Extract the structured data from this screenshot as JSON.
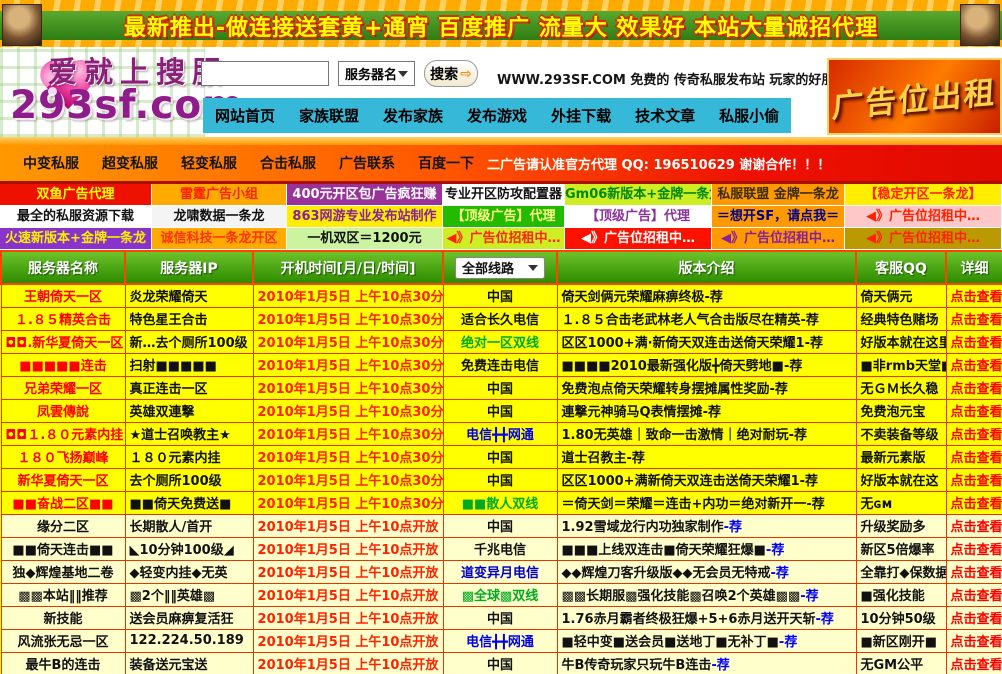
{
  "colors": {
    "accent_red": "#ff0000",
    "row_bright": "#ffff00",
    "row_pale": "#ffffcc",
    "header_green": "#3a9a0a",
    "nav_cyan": "#36b8d8",
    "filter_red": "#ee1100"
  },
  "banner": {
    "text": "最新推出-做连接送套黄+通宵 百度推广 流量大 效果好 本站大量诚招代理"
  },
  "header": {
    "logo_line1": "爱就上搜服",
    "logo_line2": "293sf.com",
    "search": {
      "value": "",
      "category": "服务器名",
      "button": "搜索",
      "arrow": "⇨"
    },
    "tagline": "WWW.293SF.COM 免费的 传奇私服发布站 玩家的好朋友",
    "nav": [
      "网站首页",
      "家族联盟",
      "发布家族",
      "发布游戏",
      "外挂下载",
      "技术文章",
      "私服小偷"
    ],
    "ad_banner": "广告位出租"
  },
  "subnav": {
    "items": [
      "中变私服",
      "超变私服",
      "轻变私服",
      "合击私服",
      "广告联系",
      "百度一下"
    ],
    "notice": "二广告请认准官方代理 QQ: 196510629 谢谢合作！！！"
  },
  "ad_grid": {
    "rows": [
      [
        {
          "text": "双鱼广告代理",
          "bg": "#ee1100",
          "color": "#ffff00"
        },
        {
          "text": "雷霆广告小组",
          "bg": "#ffaa00",
          "color": "#ff2200"
        },
        {
          "text": "400元开区包广告疯狂赚",
          "bg": "#993399",
          "color": "#ffffff"
        },
        {
          "text": "专业开区防攻配置器",
          "bg": "#ffffff",
          "color": "#111111"
        },
        {
          "text": "Gm06新版本+金牌一条龙",
          "bg": "#cdee22",
          "color": "#008800"
        },
        {
          "text": "私服联盟 金牌一条龙",
          "bg": "#ff9900",
          "color": "#3a2a00"
        },
        {
          "text": "【稳定开区一条龙】",
          "bg": "#ffee00",
          "color": "#ff2200"
        }
      ],
      [
        {
          "text": "最全的私服资源下载",
          "bg": "#ffffff",
          "color": "#111111"
        },
        {
          "text": "龙啸数据一条龙",
          "bg": "#f4f4f4",
          "color": "#111111"
        },
        {
          "text": "863网游专业发布站制作",
          "bg": "#ffee00",
          "color": "#882299"
        },
        {
          "text": "【顶级广告】代理",
          "bg": "#22bb00",
          "color": "#ffff88"
        },
        {
          "text": "【顶级广告】代理",
          "bg": "#ffffff",
          "color": "#883399"
        },
        {
          "text": "＝想开SF，请点我＝",
          "bg": "#ff9900",
          "color": "#000088"
        },
        {
          "text": "◀》广告位招租中…",
          "bg": "#ffc8c8",
          "color": "#ff2200"
        }
      ],
      [
        {
          "text": "火速新版本+金牌一条龙",
          "bg": "#8833cc",
          "color": "#ffee00"
        },
        {
          "text": "诚信科技一条龙开区",
          "bg": "#ffaa00",
          "color": "#ff3300"
        },
        {
          "text": "一机双区＝1200元",
          "bg": "#cbf3a0",
          "color": "#111111"
        },
        {
          "text": "◀》广告位招租中…",
          "bg": "#cdee22",
          "color": "#ff2200"
        },
        {
          "text": "◀》广告位招租中…",
          "bg": "#ff1100",
          "color": "#ffffff"
        },
        {
          "text": "◀》广告位招租中…",
          "bg": "#ff9900",
          "color": "#882299"
        },
        {
          "text": "◀》广告位招租中…",
          "bg": "#bb9900",
          "color": "#ff2200"
        }
      ]
    ]
  },
  "table": {
    "headers": {
      "name": "服务器名称",
      "ip": "服务器IP",
      "time": "开机时间[月/日/时间]",
      "line_filter": "全部线路",
      "version": "版本介绍",
      "qq": "客服QQ",
      "detail": "详细"
    },
    "rows": [
      {
        "name": "王朝倚天一区",
        "name_color": "#ff0000",
        "bg": "#ffff00",
        "ip": "炎龙荣耀倚天",
        "time": "2010年1月5日 上午10点30分开放",
        "line": "中国",
        "line_color": "#111111",
        "version": "倚天剑俩元荣耀麻痹终极",
        "tag": "-荐",
        "tag_color": "#111111",
        "qq": "倚天俩元",
        "detail": "点击查看"
      },
      {
        "name": "１.８５精英合击",
        "name_color": "#ff0000",
        "bg": "#ffff00",
        "ip": "特色星王合击",
        "time": "2010年1月5日 上午10点30分开放",
        "line": "适合长久电信",
        "line_color": "#111111",
        "version": "１.８５合击老武林老人气合击版尽在精英",
        "tag": "-荐",
        "tag_color": "#111111",
        "qq": "经典特色赌场",
        "detail": "点击查看"
      },
      {
        "name": "◘◘.新华夏倚天一区",
        "name_color": "#ff0000",
        "bg": "#ffff00",
        "ip": "新…去个厕所100级",
        "time": "2010年1月5日 上午10点30分开放",
        "line": "绝对一区双线",
        "line_color": "#00aa22",
        "version": "区区1000+满·新倚天双连击送倚天荣耀1",
        "tag": "-荐",
        "tag_color": "#111111",
        "qq": "好版本就在这里",
        "detail": "点击查看"
      },
      {
        "name": "■■■■■连击",
        "name_color": "#ff0000",
        "bg": "#ffff00",
        "ip": "扫射■■■■■",
        "time": "2010年1月5日 上午10点30分开放",
        "line": "免费连击电信",
        "line_color": "#111111",
        "version": "■■■■2010最新强化版╋倚天劈地■",
        "tag": "-荐",
        "tag_color": "#111111",
        "qq": "■非rmb天堂■",
        "detail": "点击查看"
      },
      {
        "name": "兄弟荣耀一区",
        "name_color": "#ff0000",
        "bg": "#ffff00",
        "ip": "真正连击一区",
        "time": "2010年1月5日 上午10点30分开放",
        "line": "中国",
        "line_color": "#111111",
        "version": "免费泡点倚天荣耀转身摆摊属性奖励",
        "tag": "-荐",
        "tag_color": "#111111",
        "qq": "无ＧＭ长久稳",
        "detail": "点击查看"
      },
      {
        "name": "凤雲傳說",
        "name_color": "#ff0000",
        "bg": "#ffff00",
        "ip": "英雄双連撃",
        "time": "2010年1月5日 上午10点30分开放",
        "line": "中国",
        "line_color": "#111111",
        "version": "連撃元神骑马Q表情摆摊",
        "tag": "-荐",
        "tag_color": "#111111",
        "qq": "免费泡元宝",
        "detail": "点击查看"
      },
      {
        "name": "◘◘１.８０元素内挂",
        "name_color": "#ff0000",
        "bg": "#ffff00",
        "ip": "★道士召唤教主★",
        "time": "2010年1月5日 上午10点30分开放",
        "line": "电信╋╋网通",
        "line_color": "#0000ee",
        "version": "1.80无英雄｜致命一击激情｜绝对耐玩",
        "tag": "-荐",
        "tag_color": "#111111",
        "qq": "不卖装备等级",
        "detail": "点击查看"
      },
      {
        "name": "１８０飞扬巅峰",
        "name_color": "#ff0000",
        "bg": "#ffff00",
        "ip": "１８０元素内挂",
        "time": "2010年1月5日 上午10点30分开放",
        "line": "中国",
        "line_color": "#111111",
        "version": "道士召教主",
        "tag": "-荐",
        "tag_color": "#111111",
        "qq": "最新元素版",
        "detail": "点击查看"
      },
      {
        "name": "新华夏倚天一区",
        "name_color": "#ff0000",
        "bg": "#ffff00",
        "ip": "去个厕所100级",
        "time": "2010年1月5日 上午10点30分开放",
        "line": "中国",
        "line_color": "#111111",
        "version": "区区1000+满新倚天双连击送倚天荣耀1",
        "tag": "-荐",
        "tag_color": "#111111",
        "qq": "好版本就在这",
        "detail": "点击查看"
      },
      {
        "name": "■■奋战二区■■",
        "name_color": "#ff0000",
        "bg": "#ffff00",
        "ip": "■■倚天免费送■",
        "time": "2010年1月5日 上午10点30分开放",
        "line": "■■散人双线",
        "line_color": "#00aa22",
        "version": "＝倚天剑＝荣耀＝连击+内功＝绝对新开一",
        "tag": "-荐",
        "tag_color": "#111111",
        "qq": "无ɢᴍ",
        "detail": "点击查看"
      },
      {
        "name": "缘分二区",
        "name_color": "#111111",
        "bg": "#ffffcc",
        "ip": "长期散人/首开",
        "time": "2010年1月5日 上午10点开放",
        "line": "中国",
        "line_color": "#111111",
        "version": "1.92雪域龙行内功独家制作",
        "tag": "-荐",
        "tag_color": "#0000ff",
        "qq": "升级奖励多",
        "detail": "点击查看"
      },
      {
        "name": "■■倚天连击■■",
        "name_color": "#111111",
        "bg": "#ffffcc",
        "ip": "◣10分钟100级◢",
        "time": "2010年1月5日 上午10点开放",
        "line": "千兆电信",
        "line_color": "#111111",
        "version": "■■■上线双连击■倚天荣耀狂爆■",
        "tag": "-荐",
        "tag_color": "#0000ff",
        "qq": "新区5倍爆率",
        "detail": "点击查看"
      },
      {
        "name": "独◆辉煌基地二卷",
        "name_color": "#111111",
        "bg": "#ffffcc",
        "ip": "◆轻变内挂◆无英",
        "time": "2010年1月5日 上午10点开放",
        "line": "道变异月电信",
        "line_color": "#0000cc",
        "version": "◆◆辉煌刀客升级版◆◆无会员无特戒",
        "tag": "-荐",
        "tag_color": "#0000ff",
        "qq": "全靠打◆保数据",
        "detail": "点击查看"
      },
      {
        "name": "▩▩本站‖‖推荐",
        "name_color": "#111111",
        "bg": "#ffffcc",
        "ip": "▩2个‖‖英雄▩",
        "time": "2010年1月5日 上午10点开放",
        "line": "▩全球▩双线",
        "line_color": "#00aa22",
        "version": "▩▩长期服▩强化技能▩召唤2个英雄▩▩",
        "tag": "-荐",
        "tag_color": "#0000ff",
        "qq": "■强化技能",
        "detail": "点击查看"
      },
      {
        "name": "新技能",
        "name_color": "#111111",
        "bg": "#ffffcc",
        "ip": "送会员麻痹复活狂",
        "time": "2010年1月5日 上午10点开放",
        "line": "中国",
        "line_color": "#111111",
        "version": "1.76赤月霸者终极狂爆+5+6赤月送开天斩",
        "tag": "-荐",
        "tag_color": "#0000ff",
        "qq": "10分钟50级",
        "detail": "点击查看"
      },
      {
        "name": "风流张无忌一区",
        "name_color": "#111111",
        "bg": "#ffffcc",
        "ip": "122.224.50.189",
        "time": "2010年1月5日 上午10点开放",
        "line": "电信╋╋网通",
        "line_color": "#0000ee",
        "version": "■轻中变■送会员■送地丁■无补丁■",
        "tag": "-荐",
        "tag_color": "#0000ff",
        "qq": "■新区刚开■",
        "detail": "点击查看"
      },
      {
        "name": "最牛B的连击",
        "name_color": "#111111",
        "bg": "#ffffcc",
        "ip": "装备送元宝送",
        "time": "2010年1月5日 上午10点开放",
        "line": "中国",
        "line_color": "#111111",
        "version": "牛B传奇玩家只玩牛B连击",
        "tag": "-荐",
        "tag_color": "#0000ff",
        "qq": "无GM公平",
        "detail": "点击查看"
      }
    ]
  }
}
